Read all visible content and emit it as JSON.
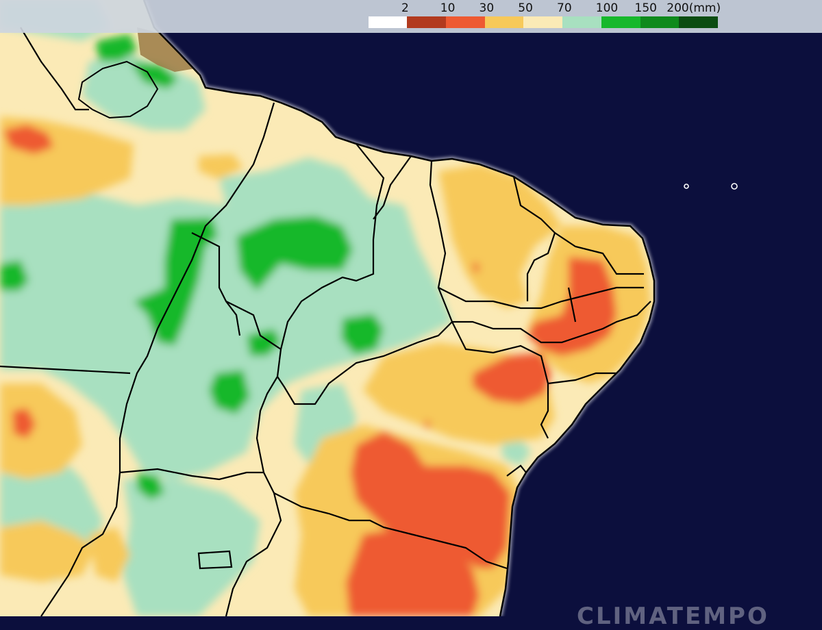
{
  "map": {
    "ocean_color": "#0c0f3d",
    "boundary_color": "#000000",
    "coast_glow_color": "#ffffff"
  },
  "legend": {
    "unit_label": "(mm)",
    "ticks": [
      "2",
      "10",
      "30",
      "50",
      "70",
      "100",
      "150",
      "200(mm)"
    ],
    "classes": [
      {
        "range": "< 2",
        "color": "#ffffff"
      },
      {
        "range": "2-10",
        "color": "#b23a1e"
      },
      {
        "range": "10-30",
        "color": "#ee5a32"
      },
      {
        "range": "30-50",
        "color": "#f7c95a"
      },
      {
        "range": "50-70",
        "color": "#fbeab6"
      },
      {
        "range": "70-100",
        "color": "#a8e0c0"
      },
      {
        "range": "100-150",
        "color": "#17b82c"
      },
      {
        "range": "150-200",
        "color": "#0f8a1c"
      },
      {
        "range": "> 200",
        "color": "#0b4d12"
      }
    ]
  },
  "watermark": {
    "text": "CLIMATEMPO"
  }
}
